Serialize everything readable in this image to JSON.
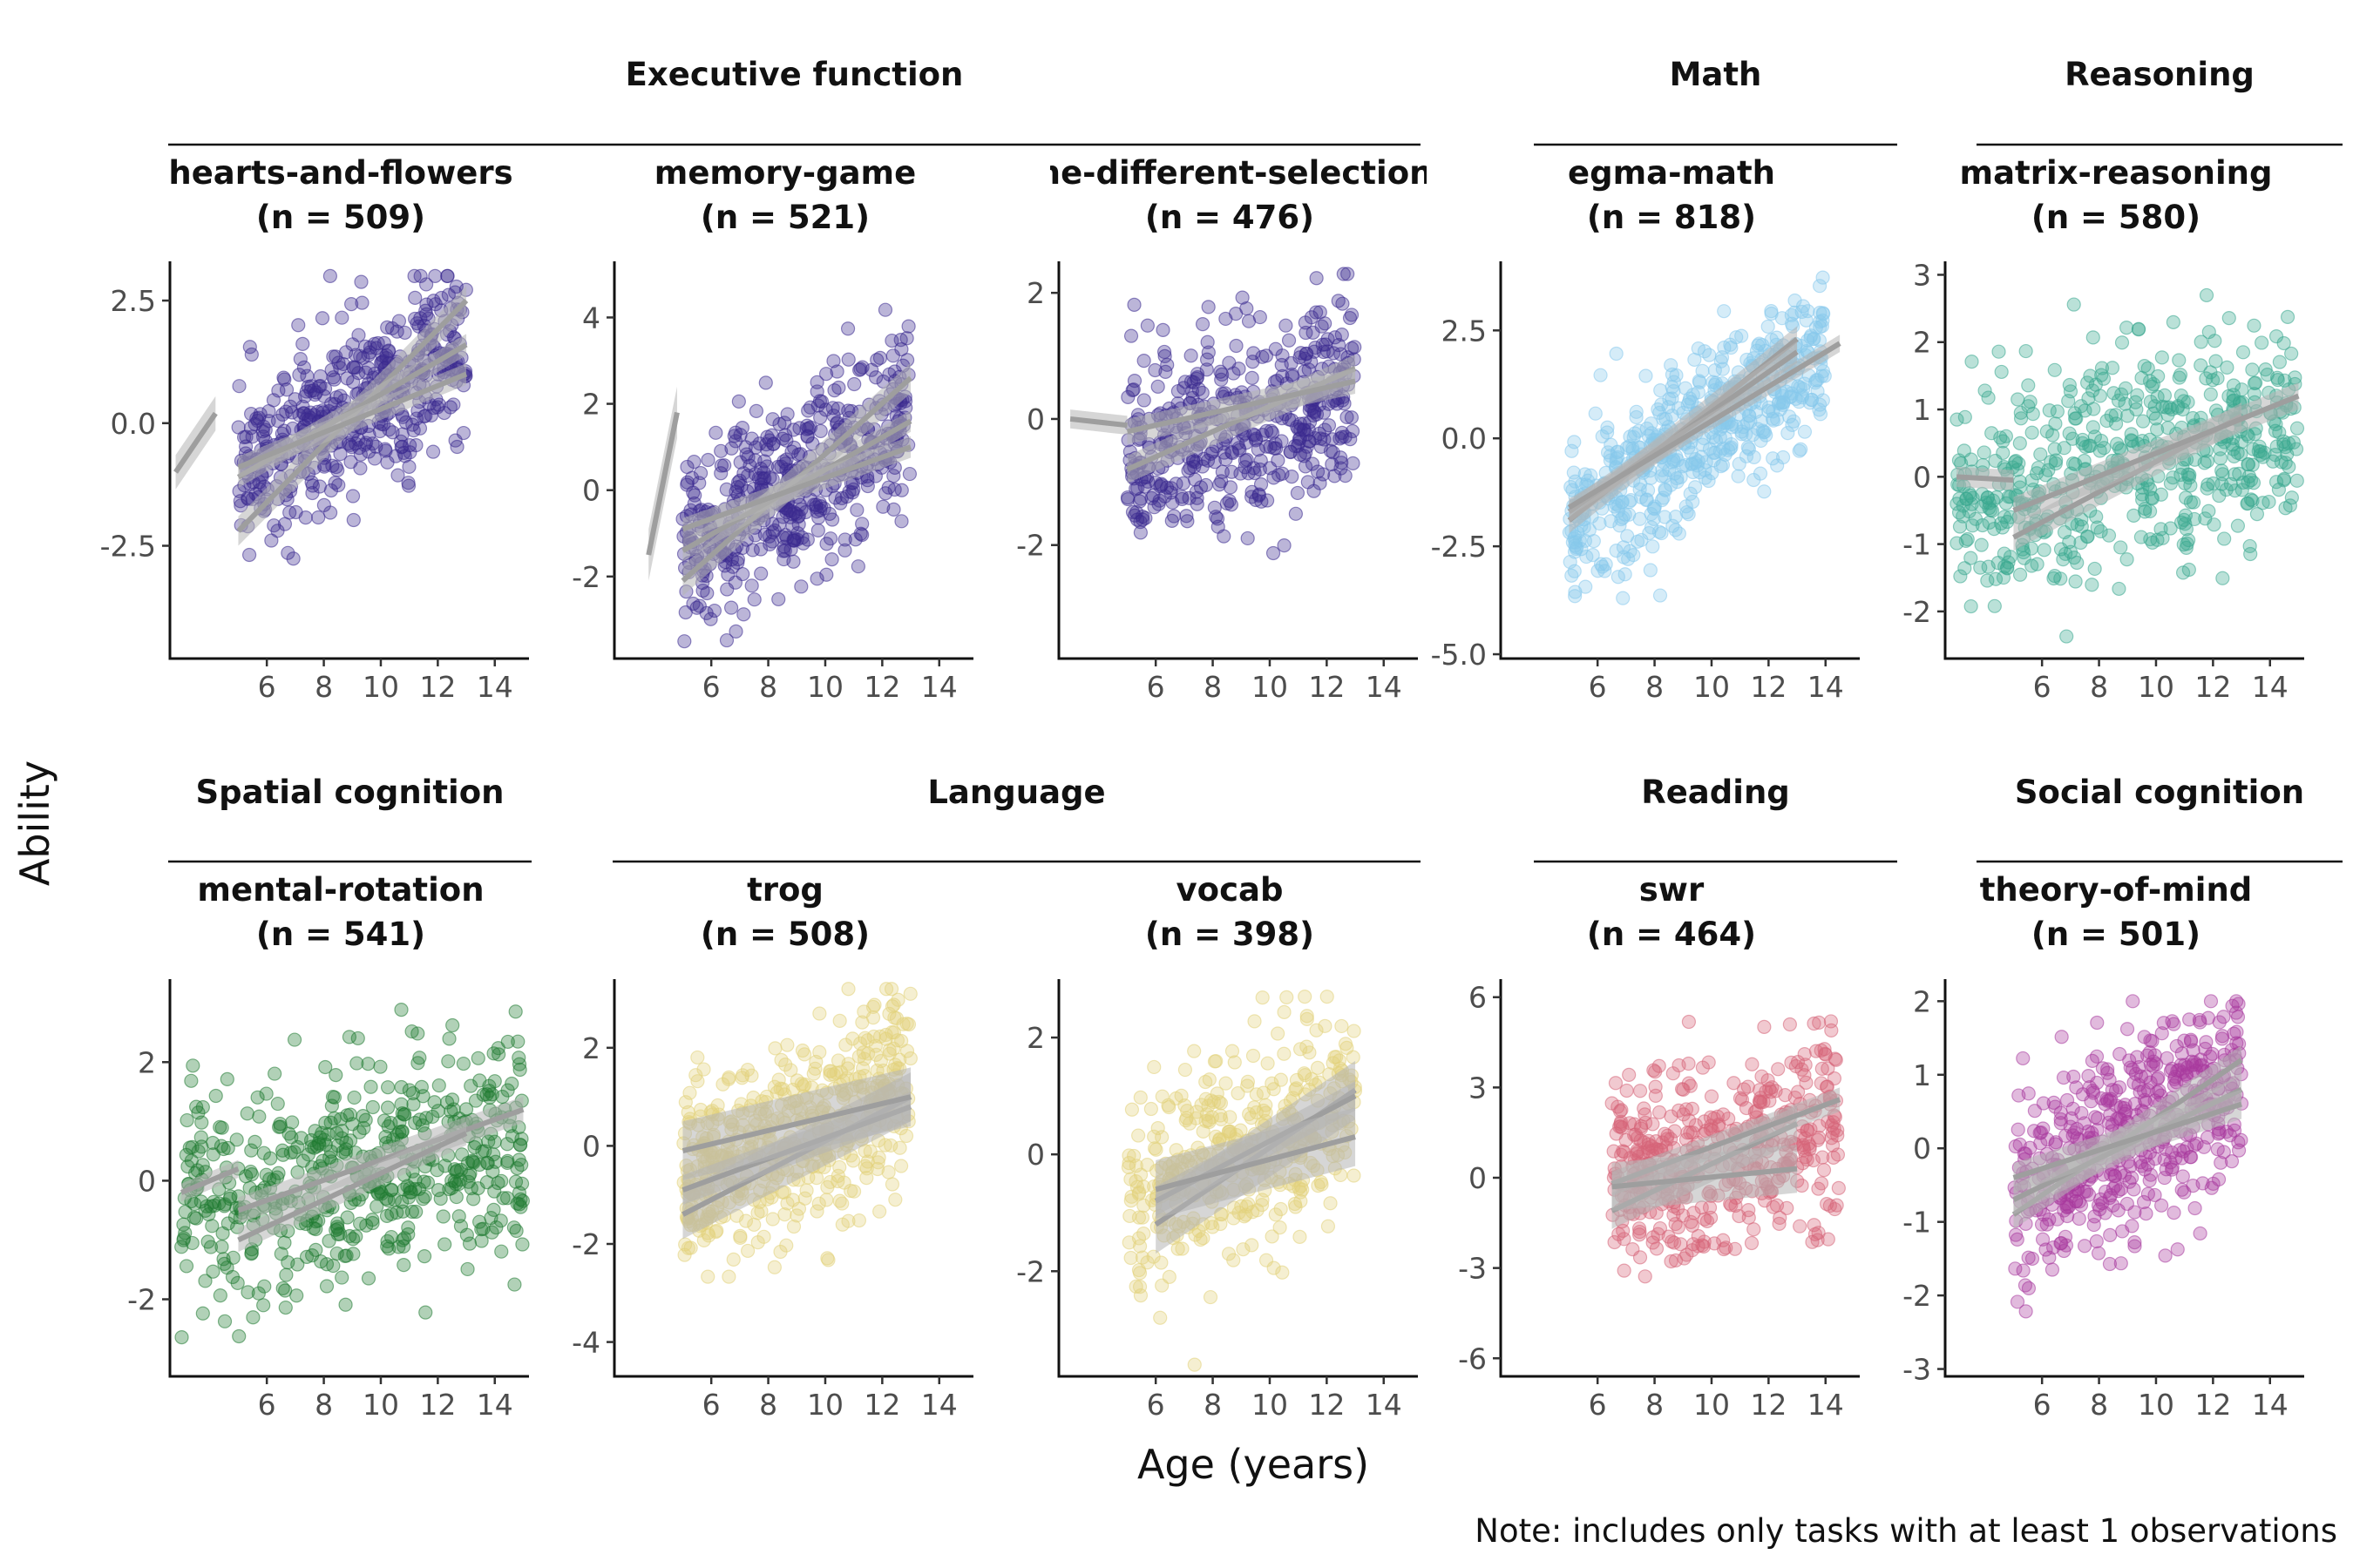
{
  "y_axis_label": "Ability",
  "x_axis_label": "Age (years)",
  "note": "Note: includes only tasks with at least 1 observations",
  "groups": [
    {
      "label": "Executive function",
      "row": 0,
      "from": 0,
      "to": 2
    },
    {
      "label": "Math",
      "row": 0,
      "from": 3,
      "to": 3
    },
    {
      "label": "Reasoning",
      "row": 0,
      "from": 4,
      "to": 4
    },
    {
      "label": "Spatial cognition",
      "row": 1,
      "from": 0,
      "to": 0
    },
    {
      "label": "Language",
      "row": 1,
      "from": 1,
      "to": 2
    },
    {
      "label": "Reading",
      "row": 1,
      "from": 3,
      "to": 3
    },
    {
      "label": "Social cognition",
      "row": 1,
      "from": 4,
      "to": 4
    }
  ],
  "chart_data": [
    {
      "type": "scatter",
      "task": "hearts-and-flowers",
      "n_label": "(n = 509)",
      "n": 509,
      "color": "#3b2a8f",
      "xlabel": "Age (years)",
      "ylabel": "Ability",
      "xticks": [
        6,
        8,
        10,
        12,
        14
      ],
      "xlim": [
        2.6,
        15.2
      ],
      "yticks": [
        -2.5,
        0,
        2.5
      ],
      "ytick_labels": [
        "-2.5",
        "0.0",
        "2.5"
      ],
      "ylim": [
        -4.8,
        3.3
      ],
      "point_summary": {
        "x_range": [
          5,
          13
        ],
        "y_range": [
          -4.5,
          3
        ],
        "mean_at_x_min": -1.0,
        "mean_at_x_max": 1.5,
        "spread": 0.9
      },
      "fit_lines": [
        {
          "x": [
            2.8,
            4.2
          ],
          "y": [
            -1.0,
            0.2
          ],
          "band": 0.35
        },
        {
          "x": [
            5,
            13
          ],
          "y": [
            -2.2,
            2.5
          ],
          "band": 0.3
        },
        {
          "x": [
            5,
            13
          ],
          "y": [
            -1.1,
            1.6
          ],
          "band": 0.22
        },
        {
          "x": [
            5,
            13
          ],
          "y": [
            -0.9,
            1.0
          ],
          "band": 0.22
        }
      ]
    },
    {
      "type": "scatter",
      "task": "memory-game",
      "n_label": "(n = 521)",
      "n": 521,
      "color": "#3b2a8f",
      "xlabel": "Age (years)",
      "ylabel": "Ability",
      "xticks": [
        6,
        8,
        10,
        12,
        14
      ],
      "xlim": [
        2.6,
        15.2
      ],
      "yticks": [
        -2,
        0,
        2,
        4
      ],
      "ytick_labels": [
        "-2",
        "0",
        "2",
        "4"
      ],
      "ylim": [
        -3.9,
        5.3
      ],
      "point_summary": {
        "x_range": [
          5,
          13
        ],
        "y_range": [
          -3.5,
          4.8
        ],
        "mean_at_x_min": -1.4,
        "mean_at_x_max": 1.6,
        "spread": 1.0
      },
      "fit_lines": [
        {
          "x": [
            3.8,
            4.8
          ],
          "y": [
            -1.5,
            1.8
          ],
          "band": 0.6
        },
        {
          "x": [
            5,
            13
          ],
          "y": [
            -2.1,
            2.6
          ],
          "band": 0.35
        },
        {
          "x": [
            5,
            13
          ],
          "y": [
            -1.4,
            1.6
          ],
          "band": 0.25
        },
        {
          "x": [
            5,
            13
          ],
          "y": [
            -0.9,
            1.0
          ],
          "band": 0.25
        }
      ]
    },
    {
      "type": "scatter",
      "task": "me-different-selection",
      "n_label": "(n = 476)",
      "n": 476,
      "color": "#3b2a8f",
      "xlabel": "Age (years)",
      "ylabel": "Ability",
      "xticks": [
        6,
        8,
        10,
        12,
        14
      ],
      "xlim": [
        2.6,
        15.2
      ],
      "yticks": [
        -2,
        0,
        2
      ],
      "ytick_labels": [
        "-2",
        "0",
        "2"
      ],
      "ylim": [
        -3.8,
        2.5
      ],
      "point_summary": {
        "x_range": [
          5,
          13
        ],
        "y_range": [
          -3.5,
          2.3
        ],
        "mean_at_x_min": -0.6,
        "mean_at_x_max": 0.5,
        "spread": 0.8
      },
      "fit_lines": [
        {
          "x": [
            3.0,
            5.0
          ],
          "y": [
            0.0,
            -0.1
          ],
          "band": 0.15
        },
        {
          "x": [
            5,
            13
          ],
          "y": [
            -0.8,
            0.8
          ],
          "band": 0.22
        },
        {
          "x": [
            5,
            13
          ],
          "y": [
            -0.2,
            0.6
          ],
          "band": 0.2
        }
      ]
    },
    {
      "type": "scatter",
      "task": "egma-math",
      "n_label": "(n = 818)",
      "n": 818,
      "color": "#87c9ec",
      "xlabel": "Age (years)",
      "ylabel": "Ability",
      "xticks": [
        6,
        8,
        10,
        12,
        14
      ],
      "xlim": [
        2.6,
        15.2
      ],
      "yticks": [
        -5,
        -2.5,
        0,
        2.5
      ],
      "ytick_labels": [
        "-5.0",
        "-2.5",
        "0.0",
        "2.5"
      ],
      "ylim": [
        -5.1,
        4.1
      ],
      "point_summary": {
        "x_range": [
          5,
          14
        ],
        "y_range": [
          -4.7,
          3.9
        ],
        "mean_at_x_min": -2.0,
        "mean_at_x_max": 2.0,
        "spread": 0.9
      },
      "fit_lines": [
        {
          "x": [
            5,
            13
          ],
          "y": [
            -1.9,
            2.3
          ],
          "band": 0.3
        },
        {
          "x": [
            5,
            13
          ],
          "y": [
            -1.7,
            2.0
          ],
          "band": 0.25
        },
        {
          "x": [
            5,
            14.5
          ],
          "y": [
            -1.6,
            2.2
          ],
          "band": 0.2
        }
      ]
    },
    {
      "type": "scatter",
      "task": "matrix-reasoning",
      "n_label": "(n = 580)",
      "n": 580,
      "color": "#3aa890",
      "xlabel": "Age (years)",
      "ylabel": "Ability",
      "xticks": [
        6,
        8,
        10,
        12,
        14
      ],
      "xlim": [
        2.6,
        15.2
      ],
      "yticks": [
        -2,
        -1,
        0,
        1,
        2,
        3
      ],
      "ytick_labels": [
        "-2",
        "-1",
        "0",
        "1",
        "2",
        "3"
      ],
      "ylim": [
        -2.7,
        3.2
      ],
      "point_summary": {
        "x_range": [
          3,
          15
        ],
        "y_range": [
          -2.5,
          3
        ],
        "mean_at_x_min": -0.5,
        "mean_at_x_max": 1.0,
        "spread": 0.8
      },
      "fit_lines": [
        {
          "x": [
            3.0,
            5.0
          ],
          "y": [
            0.0,
            -0.05
          ],
          "band": 0.15
        },
        {
          "x": [
            5,
            13
          ],
          "y": [
            -0.9,
            0.9
          ],
          "band": 0.2
        },
        {
          "x": [
            5,
            15
          ],
          "y": [
            -0.5,
            1.2
          ],
          "band": 0.2
        }
      ]
    },
    {
      "type": "scatter",
      "task": "mental-rotation",
      "n_label": "(n = 541)",
      "n": 541,
      "color": "#1f7a32",
      "xlabel": "Age (years)",
      "ylabel": "Ability",
      "xticks": [
        6,
        8,
        10,
        12,
        14
      ],
      "xlim": [
        2.6,
        15.2
      ],
      "yticks": [
        -2,
        0,
        2
      ],
      "ytick_labels": [
        "-2",
        "0",
        "2"
      ],
      "ylim": [
        -3.3,
        3.4
      ],
      "point_summary": {
        "x_range": [
          3,
          15
        ],
        "y_range": [
          -3,
          3.2
        ],
        "mean_at_x_min": -0.6,
        "mean_at_x_max": 0.8,
        "spread": 0.9
      },
      "fit_lines": [
        {
          "x": [
            3.0,
            5.0
          ],
          "y": [
            -0.2,
            0.2
          ],
          "band": 0.15
        },
        {
          "x": [
            5,
            15
          ],
          "y": [
            -0.5,
            1.2
          ],
          "band": 0.22
        },
        {
          "x": [
            5,
            13
          ],
          "y": [
            -1.0,
            0.8
          ],
          "band": 0.2
        }
      ]
    },
    {
      "type": "scatter",
      "task": "trog",
      "n_label": "(n = 508)",
      "n": 508,
      "color": "#e2d27a",
      "xlabel": "Age (years)",
      "ylabel": "Ability",
      "xticks": [
        6,
        8,
        10,
        12,
        14
      ],
      "xlim": [
        2.6,
        15.2
      ],
      "yticks": [
        -4,
        -2,
        0,
        2
      ],
      "ytick_labels": [
        "-4",
        "-2",
        "0",
        "2"
      ],
      "ylim": [
        -4.7,
        3.4
      ],
      "point_summary": {
        "x_range": [
          5,
          13
        ],
        "y_range": [
          -4.4,
          3.2
        ],
        "mean_at_x_min": -0.8,
        "mean_at_x_max": 1.2,
        "spread": 1.0
      },
      "fit_lines": [
        {
          "x": [
            5,
            13
          ],
          "y": [
            -1.4,
            1.0
          ],
          "band": 0.5
        },
        {
          "x": [
            5,
            13
          ],
          "y": [
            -0.9,
            0.8
          ],
          "band": 0.3
        },
        {
          "x": [
            5,
            13
          ],
          "y": [
            -0.1,
            1.0
          ],
          "band": 0.6
        }
      ]
    },
    {
      "type": "scatter",
      "task": "vocab",
      "n_label": "(n = 398)",
      "n": 398,
      "color": "#e2d27a",
      "xlabel": "Age (years)",
      "ylabel": "Ability",
      "xticks": [
        6,
        8,
        10,
        12,
        14
      ],
      "xlim": [
        2.6,
        15.2
      ],
      "yticks": [
        -2,
        0,
        2
      ],
      "ytick_labels": [
        "-2",
        "0",
        "2"
      ],
      "ylim": [
        -3.8,
        3.0
      ],
      "point_summary": {
        "x_range": [
          5,
          13
        ],
        "y_range": [
          -3.6,
          2.7
        ],
        "mean_at_x_min": -0.8,
        "mean_at_x_max": 1.0,
        "spread": 0.9
      },
      "fit_lines": [
        {
          "x": [
            6,
            13
          ],
          "y": [
            -1.2,
            1.1
          ],
          "band": 0.5
        },
        {
          "x": [
            6,
            13
          ],
          "y": [
            -0.8,
            1.0
          ],
          "band": 0.25
        },
        {
          "x": [
            6,
            13
          ],
          "y": [
            -0.6,
            0.3
          ],
          "band": 0.5
        }
      ]
    },
    {
      "type": "scatter",
      "task": "swr",
      "n_label": "(n = 464)",
      "n": 464,
      "color": "#d66478",
      "xlabel": "Age (years)",
      "ylabel": "Ability",
      "xticks": [
        6,
        8,
        10,
        12,
        14
      ],
      "xlim": [
        2.6,
        15.2
      ],
      "yticks": [
        -6,
        -3,
        0,
        3,
        6
      ],
      "ytick_labels": [
        "-6",
        "-3",
        "0",
        "3",
        "6"
      ],
      "ylim": [
        -6.6,
        6.6
      ],
      "point_summary": {
        "x_range": [
          6.5,
          14.5
        ],
        "y_range": [
          -6,
          6
        ],
        "mean_at_x_min": 0.0,
        "mean_at_x_max": 1.8,
        "spread": 1.6
      },
      "fit_lines": [
        {
          "x": [
            6.5,
            13
          ],
          "y": [
            -1.1,
            1.8
          ],
          "band": 0.6
        },
        {
          "x": [
            6.5,
            14.5
          ],
          "y": [
            -0.2,
            2.6
          ],
          "band": 0.4
        },
        {
          "x": [
            6.5,
            13
          ],
          "y": [
            -0.3,
            0.3
          ],
          "band": 0.8
        }
      ]
    },
    {
      "type": "scatter",
      "task": "theory-of-mind",
      "n_label": "(n = 501)",
      "n": 501,
      "color": "#a83a9e",
      "xlabel": "Age (years)",
      "ylabel": "Ability",
      "xticks": [
        6,
        8,
        10,
        12,
        14
      ],
      "xlim": [
        2.6,
        15.2
      ],
      "yticks": [
        -3,
        -2,
        -1,
        0,
        1,
        2
      ],
      "ytick_labels": [
        "-3",
        "-2",
        "-1",
        "0",
        "1",
        "2"
      ],
      "ylim": [
        -3.1,
        2.3
      ],
      "point_summary": {
        "x_range": [
          5,
          13
        ],
        "y_range": [
          -2.8,
          2.0
        ],
        "mean_at_x_min": -0.6,
        "mean_at_x_max": 0.9,
        "spread": 0.7
      },
      "fit_lines": [
        {
          "x": [
            5,
            13
          ],
          "y": [
            -0.9,
            1.2
          ],
          "band": 0.2
        },
        {
          "x": [
            5,
            13
          ],
          "y": [
            -0.7,
            0.8
          ],
          "band": 0.2
        },
        {
          "x": [
            5,
            13
          ],
          "y": [
            -0.4,
            0.6
          ],
          "band": 0.2
        }
      ]
    }
  ]
}
